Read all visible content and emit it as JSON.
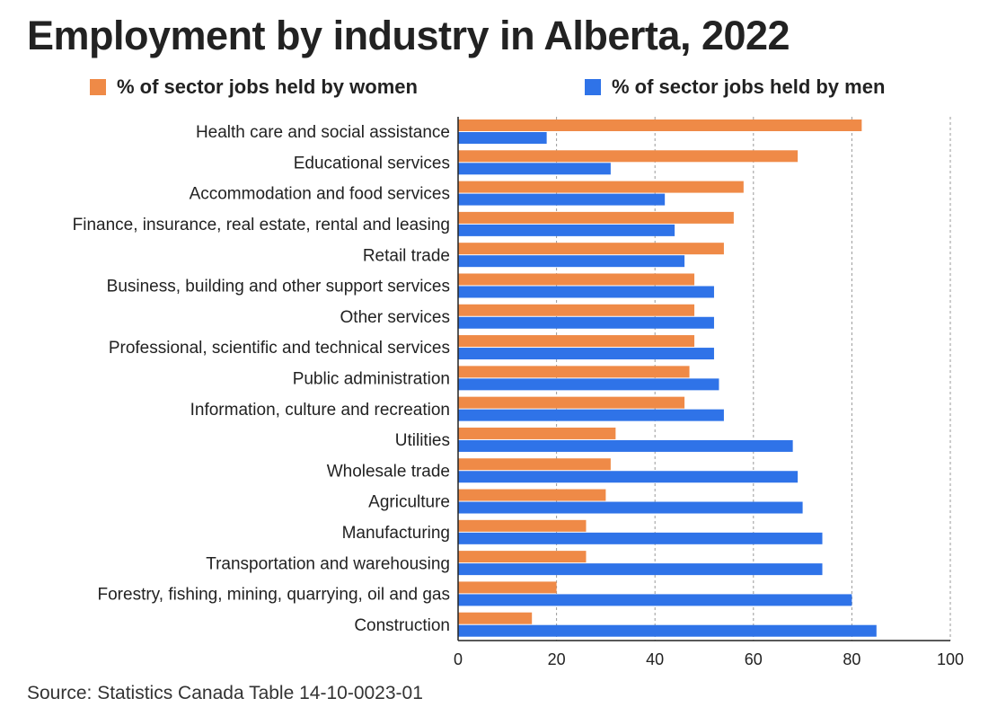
{
  "chart_data": {
    "type": "bar",
    "orientation": "horizontal",
    "title": "Employment by industry in Alberta, 2022",
    "xlabel": "",
    "ylabel": "",
    "xlim": [
      0,
      100
    ],
    "ticks": [
      0,
      20,
      40,
      60,
      80,
      100
    ],
    "grid": "vertical dashed",
    "legend_position": "top",
    "categories": [
      "Health care and social assistance",
      "Educational services",
      "Accommodation and food services",
      "Finance, insurance, real estate, rental and leasing",
      "Retail trade",
      "Business, building and other support services",
      "Other services ",
      "Professional, scientific and technical services",
      "Public administration",
      "Information, culture and recreation",
      "Utilities",
      "Wholesale trade",
      "Agriculture",
      "Manufacturing",
      "Transportation and warehousing",
      "Forestry, fishing, mining, quarrying, oil and gas",
      "Construction"
    ],
    "series": [
      {
        "name": "% of sector jobs held by women",
        "color": "#ef8a47",
        "values": [
          82,
          69,
          58,
          56,
          54,
          48,
          48,
          48,
          47,
          46,
          32,
          31,
          30,
          26,
          26,
          20,
          15
        ]
      },
      {
        "name": "% of sector jobs held by men",
        "color": "#2f73e8",
        "values": [
          18,
          31,
          42,
          44,
          46,
          52,
          52,
          52,
          53,
          54,
          68,
          69,
          70,
          74,
          74,
          80,
          85
        ]
      }
    ],
    "source": "Source: Statistics Canada Table 14-10-0023-01"
  }
}
